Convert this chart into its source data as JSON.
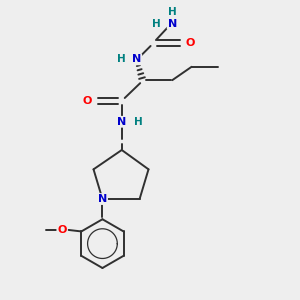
{
  "bg_color": "#eeeeee",
  "atom_color_N": "#0000cc",
  "atom_color_O": "#ff0000",
  "atom_color_H": "#008080",
  "bond_color": "#303030",
  "bond_width": 1.4,
  "fig_width": 3.0,
  "fig_height": 3.0,
  "dpi": 100,
  "xlim": [
    0,
    10
  ],
  "ylim": [
    0,
    10
  ]
}
